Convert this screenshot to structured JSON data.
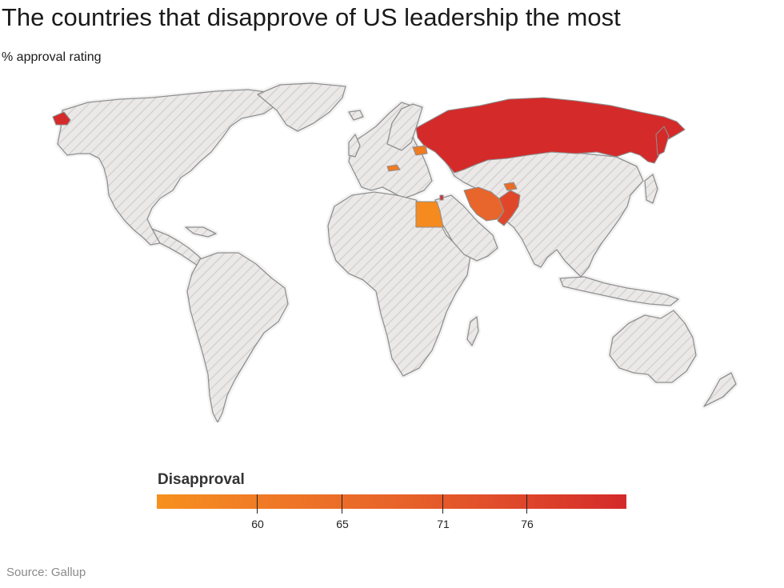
{
  "header": {
    "title": "The countries that disapprove of US leadership the most",
    "subtitle": "% approval rating"
  },
  "map": {
    "no_data_fill": "#ebe8e8",
    "hatch_color": "#d7d2d2",
    "border_color": "#8f8f8f",
    "highlighted_countries": [
      {
        "name": "Russia",
        "color": "#d42a2a",
        "bin": "76+"
      },
      {
        "name": "Alaska region",
        "color": "#d42a2a",
        "bin": "76+"
      },
      {
        "name": "Iran",
        "color": "#e8662b",
        "bin": "65-71"
      },
      {
        "name": "Pakistan",
        "color": "#e0462a",
        "bin": "71-76"
      },
      {
        "name": "Egypt",
        "color": "#f58a1e",
        "bin": "<60"
      },
      {
        "name": "Belarus",
        "color": "#ef7b22",
        "bin": "60-65"
      },
      {
        "name": "Austria",
        "color": "#ef7b22",
        "bin": "60-65"
      },
      {
        "name": "Tajikistan",
        "color": "#ea6c26",
        "bin": "65-71"
      },
      {
        "name": "Lebanon",
        "color": "#d42a2a",
        "bin": "76+"
      }
    ]
  },
  "legend": {
    "title": "Disapproval",
    "stops": [
      "#f7901e",
      "#ef7826",
      "#e8642a",
      "#df4a2b",
      "#d42a2a"
    ],
    "ticks": [
      "60",
      "65",
      "71",
      "76"
    ]
  },
  "footer": {
    "source": "Source: Gallup"
  }
}
